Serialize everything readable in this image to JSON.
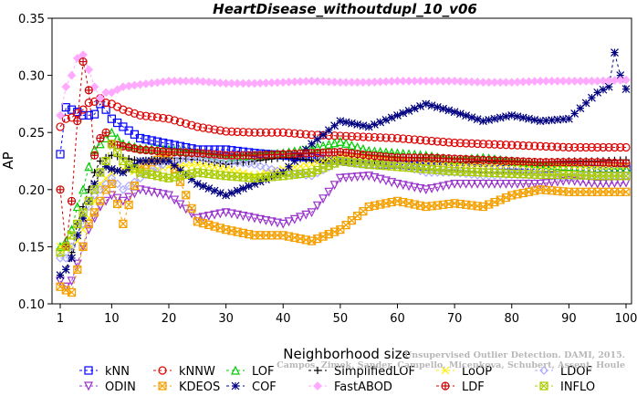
{
  "chart_data": {
    "type": "line",
    "title": "HeartDisease_withoutdupl_10_v06",
    "xlabel": "Neighborhood size",
    "ylabel": "AP",
    "xlim": [
      0,
      100
    ],
    "ylim": [
      0.1,
      0.35
    ],
    "x_ticks": [
      1,
      10,
      20,
      30,
      40,
      50,
      60,
      70,
      80,
      90,
      100
    ],
    "y_ticks": [
      0.1,
      0.15,
      0.2,
      0.25,
      0.3,
      0.35
    ],
    "grid": false,
    "legend_position": "bottom",
    "series_anchors_note_x": [
      1,
      2,
      3,
      4,
      5,
      6,
      7,
      8,
      9,
      10,
      12,
      15,
      20,
      25,
      30,
      35,
      40,
      45,
      50,
      55,
      60,
      65,
      70,
      75,
      80,
      85,
      90,
      95,
      97,
      98,
      99,
      100
    ],
    "series": [
      {
        "name": "kNN",
        "color": "#0000ff",
        "marker": "square",
        "x": [
          1,
          2,
          3,
          4,
          5,
          6,
          7,
          8,
          9,
          10,
          12,
          15,
          20,
          25,
          30,
          35,
          40,
          45,
          50,
          55,
          60,
          65,
          70,
          75,
          80,
          85,
          90,
          95,
          100
        ],
        "y": [
          0.231,
          0.272,
          0.27,
          0.268,
          0.265,
          0.265,
          0.266,
          0.275,
          0.27,
          0.262,
          0.255,
          0.245,
          0.24,
          0.235,
          0.235,
          0.232,
          0.23,
          0.228,
          0.225,
          0.222,
          0.222,
          0.22,
          0.22,
          0.218,
          0.218,
          0.218,
          0.22,
          0.218,
          0.218
        ]
      },
      {
        "name": "kNNW",
        "color": "#dd0000",
        "marker": "circle",
        "x": [
          1,
          2,
          3,
          4,
          5,
          6,
          7,
          8,
          9,
          10,
          12,
          15,
          20,
          25,
          30,
          35,
          40,
          45,
          50,
          55,
          60,
          65,
          70,
          75,
          80,
          85,
          90,
          95,
          100
        ],
        "y": [
          0.255,
          0.262,
          0.263,
          0.267,
          0.27,
          0.276,
          0.277,
          0.28,
          0.276,
          0.275,
          0.27,
          0.265,
          0.262,
          0.255,
          0.251,
          0.25,
          0.25,
          0.248,
          0.247,
          0.246,
          0.245,
          0.243,
          0.241,
          0.24,
          0.239,
          0.238,
          0.237,
          0.237,
          0.237
        ]
      },
      {
        "name": "LOF",
        "color": "#00cc00",
        "marker": "triangle",
        "x": [
          1,
          2,
          3,
          4,
          5,
          6,
          7,
          8,
          9,
          10,
          12,
          15,
          20,
          25,
          30,
          35,
          40,
          45,
          50,
          55,
          60,
          65,
          70,
          75,
          80,
          85,
          90,
          95,
          100
        ],
        "y": [
          0.15,
          0.155,
          0.165,
          0.185,
          0.2,
          0.22,
          0.235,
          0.24,
          0.245,
          0.25,
          0.24,
          0.236,
          0.235,
          0.232,
          0.228,
          0.23,
          0.232,
          0.236,
          0.242,
          0.234,
          0.232,
          0.23,
          0.226,
          0.228,
          0.225,
          0.222,
          0.22,
          0.218,
          0.218
        ]
      },
      {
        "name": "SimplifiedLOF",
        "color": "#000000",
        "marker": "plus",
        "x": [
          1,
          2,
          3,
          4,
          5,
          6,
          7,
          8,
          9,
          10,
          12,
          15,
          20,
          25,
          30,
          35,
          40,
          45,
          50,
          55,
          60,
          65,
          70,
          75,
          80,
          85,
          90,
          95,
          100
        ],
        "y": [
          0.125,
          0.13,
          0.145,
          0.17,
          0.185,
          0.2,
          0.215,
          0.225,
          0.228,
          0.23,
          0.228,
          0.225,
          0.228,
          0.226,
          0.222,
          0.225,
          0.228,
          0.226,
          0.225,
          0.225,
          0.226,
          0.225,
          0.224,
          0.225,
          0.224,
          0.224,
          0.225,
          0.225,
          0.226
        ]
      },
      {
        "name": "LoOP",
        "color": "#ffee00",
        "marker": "x",
        "x": [
          1,
          2,
          3,
          4,
          5,
          6,
          7,
          8,
          9,
          10,
          12,
          15,
          20,
          25,
          30,
          35,
          40,
          45,
          50,
          55,
          60,
          65,
          70,
          75,
          80,
          85,
          90,
          95,
          100
        ],
        "y": [
          0.15,
          0.148,
          0.15,
          0.155,
          0.165,
          0.175,
          0.19,
          0.205,
          0.21,
          0.215,
          0.218,
          0.215,
          0.22,
          0.222,
          0.218,
          0.212,
          0.218,
          0.222,
          0.23,
          0.228,
          0.226,
          0.223,
          0.222,
          0.221,
          0.222,
          0.22,
          0.221,
          0.22,
          0.221
        ]
      },
      {
        "name": "LDOF",
        "color": "#aaaaff",
        "marker": "diamond",
        "x": [
          1,
          2,
          3,
          4,
          5,
          6,
          7,
          8,
          9,
          10,
          12,
          15,
          20,
          25,
          30,
          35,
          40,
          45,
          50,
          55,
          60,
          65,
          70,
          75,
          80,
          85,
          90,
          95,
          100
        ],
        "y": [
          0.14,
          0.14,
          0.15,
          0.16,
          0.17,
          0.185,
          0.195,
          0.2,
          0.205,
          0.21,
          0.2,
          0.21,
          0.225,
          0.228,
          0.225,
          0.222,
          0.215,
          0.212,
          0.225,
          0.222,
          0.222,
          0.215,
          0.215,
          0.212,
          0.213,
          0.212,
          0.211,
          0.213,
          0.212
        ]
      },
      {
        "name": "ODIN",
        "color": "#9933cc",
        "marker": "triangle-down",
        "x": [
          1,
          2,
          3,
          4,
          5,
          6,
          7,
          8,
          9,
          10,
          12,
          15,
          20,
          25,
          30,
          35,
          40,
          45,
          50,
          55,
          60,
          65,
          70,
          75,
          80,
          85,
          90,
          95,
          100
        ],
        "y": [
          0.12,
          0.115,
          0.12,
          0.135,
          0.15,
          0.165,
          0.175,
          0.185,
          0.19,
          0.195,
          0.19,
          0.2,
          0.195,
          0.175,
          0.18,
          0.175,
          0.17,
          0.18,
          0.21,
          0.212,
          0.205,
          0.2,
          0.205,
          0.205,
          0.205,
          0.205,
          0.208,
          0.205,
          0.206
        ]
      },
      {
        "name": "KDEOS",
        "color": "#f4a000",
        "marker": "square-x",
        "x": [
          1,
          2,
          3,
          4,
          5,
          6,
          7,
          8,
          9,
          10,
          12,
          15,
          20,
          25,
          30,
          35,
          40,
          45,
          50,
          55,
          60,
          65,
          70,
          75,
          80,
          85,
          90,
          95,
          100
        ],
        "y": [
          0.115,
          0.112,
          0.11,
          0.13,
          0.15,
          0.17,
          0.18,
          0.19,
          0.2,
          0.205,
          0.17,
          0.22,
          0.23,
          0.172,
          0.165,
          0.16,
          0.16,
          0.155,
          0.165,
          0.185,
          0.19,
          0.185,
          0.188,
          0.185,
          0.195,
          0.2,
          0.198,
          0.198,
          0.198
        ]
      },
      {
        "name": "COF",
        "color": "#000080",
        "marker": "asterisk",
        "x": [
          1,
          2,
          3,
          4,
          5,
          6,
          7,
          8,
          9,
          10,
          12,
          15,
          20,
          25,
          30,
          35,
          40,
          45,
          50,
          55,
          60,
          65,
          70,
          75,
          80,
          85,
          90,
          95,
          97,
          98,
          99,
          100
        ],
        "y": [
          0.125,
          0.13,
          0.14,
          0.16,
          0.175,
          0.19,
          0.205,
          0.215,
          0.22,
          0.218,
          0.215,
          0.225,
          0.225,
          0.205,
          0.195,
          0.205,
          0.215,
          0.24,
          0.26,
          0.255,
          0.265,
          0.275,
          0.268,
          0.26,
          0.265,
          0.26,
          0.262,
          0.285,
          0.29,
          0.32,
          0.3,
          0.288
        ]
      },
      {
        "name": "FastABOD",
        "color": "#ffaaff",
        "marker": "diamond-filled",
        "x": [
          1,
          2,
          3,
          4,
          5,
          6,
          7,
          8,
          9,
          10,
          12,
          15,
          20,
          25,
          30,
          35,
          40,
          45,
          50,
          55,
          60,
          65,
          70,
          75,
          80,
          85,
          90,
          95,
          100
        ],
        "y": [
          0.265,
          0.29,
          0.3,
          0.315,
          0.318,
          0.305,
          0.29,
          0.28,
          0.285,
          0.285,
          0.29,
          0.292,
          0.295,
          0.295,
          0.293,
          0.293,
          0.294,
          0.295,
          0.294,
          0.294,
          0.295,
          0.295,
          0.295,
          0.294,
          0.294,
          0.295,
          0.295,
          0.295,
          0.296
        ]
      },
      {
        "name": "LDF",
        "color": "#cc0000",
        "marker": "circle-plus",
        "x": [
          1,
          2,
          3,
          4,
          5,
          6,
          7,
          8,
          9,
          10,
          12,
          15,
          20,
          25,
          30,
          35,
          40,
          45,
          50,
          55,
          60,
          65,
          70,
          75,
          80,
          85,
          90,
          95,
          100
        ],
        "y": [
          0.2,
          0.15,
          0.19,
          0.26,
          0.312,
          0.287,
          0.23,
          0.245,
          0.25,
          0.24,
          0.238,
          0.235,
          0.233,
          0.232,
          0.23,
          0.23,
          0.231,
          0.232,
          0.233,
          0.23,
          0.228,
          0.228,
          0.227,
          0.226,
          0.225,
          0.224,
          0.224,
          0.224,
          0.223
        ]
      },
      {
        "name": "INFLO",
        "color": "#aacc00",
        "marker": "hourglass",
        "x": [
          1,
          2,
          3,
          4,
          5,
          6,
          7,
          8,
          9,
          10,
          12,
          15,
          20,
          25,
          30,
          35,
          40,
          45,
          50,
          55,
          60,
          65,
          70,
          75,
          80,
          85,
          90,
          95,
          100
        ],
        "y": [
          0.145,
          0.15,
          0.16,
          0.17,
          0.18,
          0.19,
          0.2,
          0.215,
          0.225,
          0.24,
          0.225,
          0.215,
          0.21,
          0.215,
          0.212,
          0.21,
          0.212,
          0.215,
          0.225,
          0.222,
          0.22,
          0.218,
          0.216,
          0.215,
          0.214,
          0.213,
          0.213,
          0.212,
          0.212
        ]
      }
    ]
  },
  "watermark": {
    "line1": "Unsupervised Outlier Detection. DAMI, 2015.",
    "line2": "Campos, Zimek, Sander, Campello, Micenkova, Schubert, Assent, Houle"
  }
}
